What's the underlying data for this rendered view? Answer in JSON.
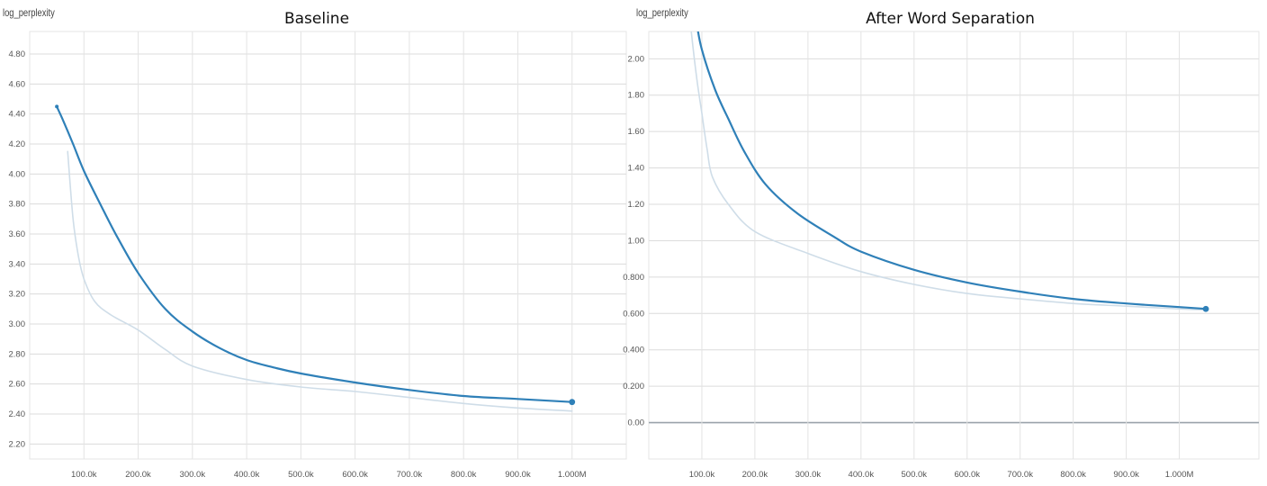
{
  "chart_data": [
    {
      "type": "line",
      "title": "Baseline",
      "ylabel": "log_perplexity",
      "xlabel": "",
      "ylim": [
        2.1,
        4.95
      ],
      "xlim": [
        0,
        1100
      ],
      "grid": true,
      "y_ticks": [
        "2.20",
        "2.40",
        "2.60",
        "2.80",
        "3.00",
        "3.20",
        "3.40",
        "3.60",
        "3.80",
        "4.00",
        "4.20",
        "4.40",
        "4.60",
        "4.80"
      ],
      "x_ticks": [
        "100.0k",
        "200.0k",
        "300.0k",
        "400.0k",
        "500.0k",
        "600.0k",
        "700.0k",
        "800.0k",
        "900.0k",
        "1.000M"
      ],
      "series": [
        {
          "color": "#2f80b8",
          "x": [
            50,
            60,
            80,
            100,
            130,
            160,
            200,
            250,
            300,
            350,
            400,
            450,
            500,
            600,
            700,
            800,
            900,
            1000
          ],
          "y": [
            4.45,
            4.37,
            4.2,
            4.02,
            3.8,
            3.59,
            3.34,
            3.1,
            2.95,
            2.84,
            2.76,
            2.71,
            2.67,
            2.61,
            2.56,
            2.52,
            2.5,
            2.48
          ]
        },
        {
          "color": "#cfdde8",
          "x": [
            70,
            80,
            90,
            100,
            120,
            150,
            200,
            250,
            300,
            400,
            500,
            600,
            700,
            800,
            900,
            1000
          ],
          "y": [
            4.15,
            3.7,
            3.45,
            3.3,
            3.15,
            3.06,
            2.96,
            2.83,
            2.72,
            2.63,
            2.58,
            2.55,
            2.51,
            2.47,
            2.44,
            2.42
          ]
        }
      ]
    },
    {
      "type": "line",
      "title": "After Word Separation",
      "ylabel": "log_perplexity",
      "xlabel": "",
      "ylim": [
        -0.2,
        2.15
      ],
      "xlim": [
        0,
        1150
      ],
      "grid": true,
      "y_ticks": [
        "0.00",
        "0.200",
        "0.400",
        "0.600",
        "0.800",
        "1.00",
        "1.20",
        "1.40",
        "1.60",
        "1.80",
        "2.00"
      ],
      "x_ticks": [
        "100.0k",
        "200.0k",
        "300.0k",
        "400.0k",
        "500.0k",
        "600.0k",
        "700.0k",
        "800.0k",
        "900.0k",
        "1.000M"
      ],
      "series": [
        {
          "color": "#2f80b8",
          "x": [
            90,
            100,
            125,
            150,
            180,
            220,
            280,
            350,
            400,
            500,
            600,
            700,
            800,
            900,
            1000,
            1050
          ],
          "y": [
            2.2,
            2.05,
            1.83,
            1.67,
            1.49,
            1.31,
            1.15,
            1.02,
            0.94,
            0.84,
            0.77,
            0.72,
            0.68,
            0.655,
            0.635,
            0.625
          ]
        },
        {
          "color": "#cfdde8",
          "x": [
            80,
            90,
            100,
            110,
            120,
            150,
            200,
            300,
            400,
            500,
            600,
            700,
            800,
            900,
            1000,
            1050
          ],
          "y": [
            2.15,
            1.9,
            1.7,
            1.5,
            1.35,
            1.2,
            1.05,
            0.93,
            0.83,
            0.76,
            0.71,
            0.68,
            0.655,
            0.64,
            0.625,
            0.62
          ]
        }
      ]
    }
  ]
}
